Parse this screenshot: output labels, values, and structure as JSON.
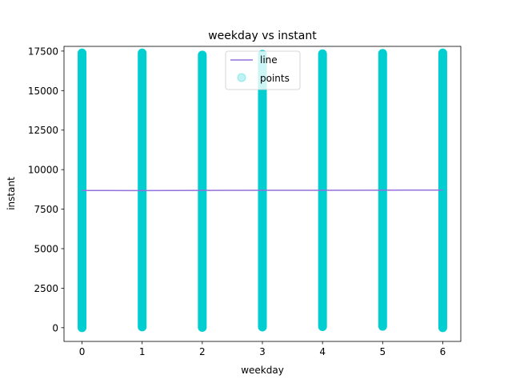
{
  "chart_data": {
    "type": "scatter",
    "title": "weekday vs instant",
    "xlabel": "weekday",
    "ylabel": "instant",
    "xlim": [
      -0.3,
      6.3
    ],
    "ylim": [
      -868,
      17797
    ],
    "x_ticks": [
      0,
      1,
      2,
      3,
      4,
      5,
      6
    ],
    "y_ticks": [
      0,
      2500,
      5000,
      7500,
      10000,
      12500,
      15000,
      17500
    ],
    "grid": false,
    "legend": {
      "placement": "top-center",
      "entries": [
        "line",
        "points"
      ]
    },
    "series": [
      {
        "name": "points",
        "kind": "scatter",
        "color": "#00CED1",
        "points": [
          {
            "x": 0,
            "y_min": 0,
            "y_max": 17379
          },
          {
            "x": 1,
            "y_min": 50,
            "y_max": 17379
          },
          {
            "x": 2,
            "y_min": 20,
            "y_max": 17250
          },
          {
            "x": 3,
            "y_min": 45,
            "y_max": 17300
          },
          {
            "x": 4,
            "y_min": 70,
            "y_max": 17330
          },
          {
            "x": 5,
            "y_min": 90,
            "y_max": 17355
          },
          {
            "x": 6,
            "y_min": 0,
            "y_max": 17379
          }
        ]
      },
      {
        "name": "line",
        "kind": "line",
        "color": "#9370DB",
        "x": [
          0,
          1,
          2,
          3,
          4,
          5,
          6
        ],
        "y": [
          8680,
          8675,
          8685,
          8690,
          8695,
          8700,
          8705
        ]
      }
    ]
  }
}
